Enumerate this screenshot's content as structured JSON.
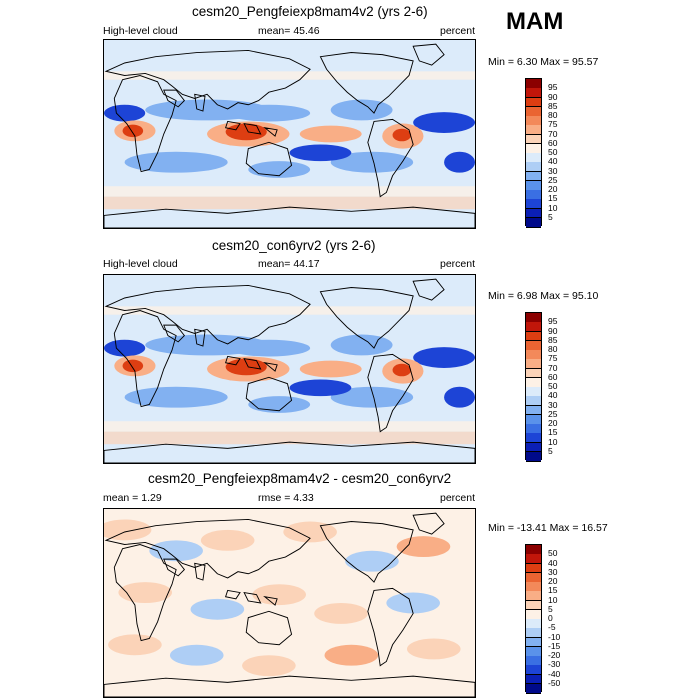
{
  "season": "MAM",
  "panels": [
    {
      "title": "cesm20_Pengfeiexp8mam4v2 (yrs 2-6)",
      "left_label": "High-level cloud",
      "center_label": "mean=  45.46",
      "units": "percent",
      "minmax": "Min =   6.30 Max =  95.57",
      "colorbar": {
        "labels": [
          "95",
          "90",
          "85",
          "80",
          "75",
          "70",
          "60",
          "50",
          "40",
          "30",
          "25",
          "20",
          "15",
          "10",
          "5"
        ],
        "colors": [
          "#8b0000",
          "#c1160a",
          "#dd3e12",
          "#ea6432",
          "#f3895a",
          "#f9ae86",
          "#fbd3b8",
          "#fdf1e6",
          "#dcebfa",
          "#aecef5",
          "#82b1f1",
          "#5a92ea",
          "#3a6fe3",
          "#1d44d6",
          "#0b1fb5",
          "#000a8a"
        ]
      },
      "pattern": "abs"
    },
    {
      "title": "cesm20_con6yrv2 (yrs 2-6)",
      "left_label": "High-level cloud",
      "center_label": "mean=  44.17",
      "units": "percent",
      "minmax": "Min =   6.98 Max =  95.10",
      "colorbar": {
        "labels": [
          "95",
          "90",
          "85",
          "80",
          "75",
          "70",
          "60",
          "50",
          "40",
          "30",
          "25",
          "20",
          "15",
          "10",
          "5"
        ],
        "colors": [
          "#8b0000",
          "#c1160a",
          "#dd3e12",
          "#ea6432",
          "#f3895a",
          "#f9ae86",
          "#fbd3b8",
          "#fdf1e6",
          "#dcebfa",
          "#aecef5",
          "#82b1f1",
          "#5a92ea",
          "#3a6fe3",
          "#1d44d6",
          "#0b1fb5",
          "#000a8a"
        ]
      },
      "pattern": "abs"
    },
    {
      "title": "cesm20_Pengfeiexp8mam4v2 - cesm20_con6yrv2",
      "left_label": "mean =   1.29",
      "center_label": "rmse =   4.33",
      "units": "percent",
      "minmax": "Min = -13.41 Max =  16.57",
      "colorbar": {
        "labels": [
          "50",
          "40",
          "30",
          "20",
          "15",
          "10",
          "5",
          "0",
          "-5",
          "-10",
          "-15",
          "-20",
          "-30",
          "-40",
          "-50"
        ],
        "colors": [
          "#8b0000",
          "#c1160a",
          "#dd3e12",
          "#ea6432",
          "#f3895a",
          "#f9ae86",
          "#fbd3b8",
          "#fdf1e6",
          "#dcebfa",
          "#aecef5",
          "#82b1f1",
          "#5a92ea",
          "#3a6fe3",
          "#1d44d6",
          "#0b1fb5",
          "#000a8a"
        ]
      },
      "pattern": "diff"
    }
  ],
  "chart_data": [
    {
      "type": "heatmap",
      "title": "cesm20_Pengfeiexp8mam4v2 (yrs 2-6)",
      "variable": "High-level cloud",
      "units": "percent",
      "mean": 45.46,
      "min": 6.3,
      "max": 95.57,
      "levels": [
        5,
        10,
        15,
        20,
        25,
        30,
        40,
        50,
        60,
        70,
        75,
        80,
        85,
        90,
        95
      ]
    },
    {
      "type": "heatmap",
      "title": "cesm20_con6yrv2 (yrs 2-6)",
      "variable": "High-level cloud",
      "units": "percent",
      "mean": 44.17,
      "min": 6.98,
      "max": 95.1,
      "levels": [
        5,
        10,
        15,
        20,
        25,
        30,
        40,
        50,
        60,
        70,
        75,
        80,
        85,
        90,
        95
      ]
    },
    {
      "type": "heatmap",
      "title": "cesm20_Pengfeiexp8mam4v2 - cesm20_con6yrv2",
      "units": "percent",
      "mean": 1.29,
      "rmse": 4.33,
      "min": -13.41,
      "max": 16.57,
      "levels": [
        -50,
        -40,
        -30,
        -20,
        -15,
        -10,
        -5,
        0,
        5,
        10,
        15,
        20,
        30,
        40,
        50
      ]
    }
  ]
}
